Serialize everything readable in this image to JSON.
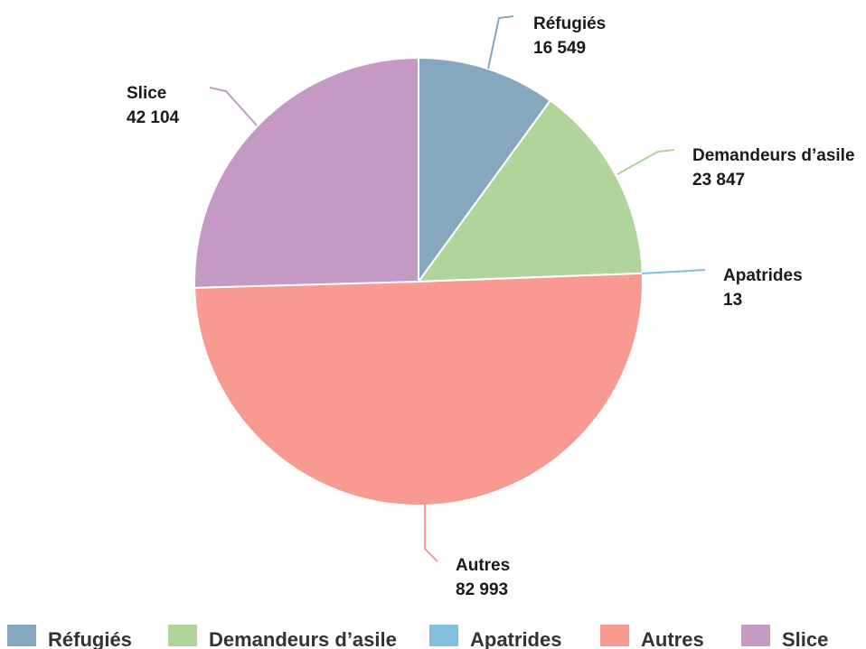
{
  "chart_data": {
    "type": "pie",
    "slices": [
      {
        "label": "Réfugiés",
        "value": 16549,
        "value_label": "16 549",
        "color": "#86a8bf"
      },
      {
        "label": "Demandeurs d’asile",
        "value": 23847,
        "value_label": "23 847",
        "color": "#b1d49b"
      },
      {
        "label": "Apatrides",
        "value": 13,
        "value_label": "13",
        "color": "#84bfe0"
      },
      {
        "label": "Autres",
        "value": 82993,
        "value_label": "82 993",
        "color": "#f99a90"
      },
      {
        "label": "Slice",
        "value": 42104,
        "value_label": "42 104",
        "color": "#c49ac5"
      }
    ],
    "legend": {
      "position": "bottom",
      "items": [
        "Réfugiés",
        "Demandeurs d’asile",
        "Apatrides",
        "Autres",
        "Slice"
      ]
    }
  }
}
